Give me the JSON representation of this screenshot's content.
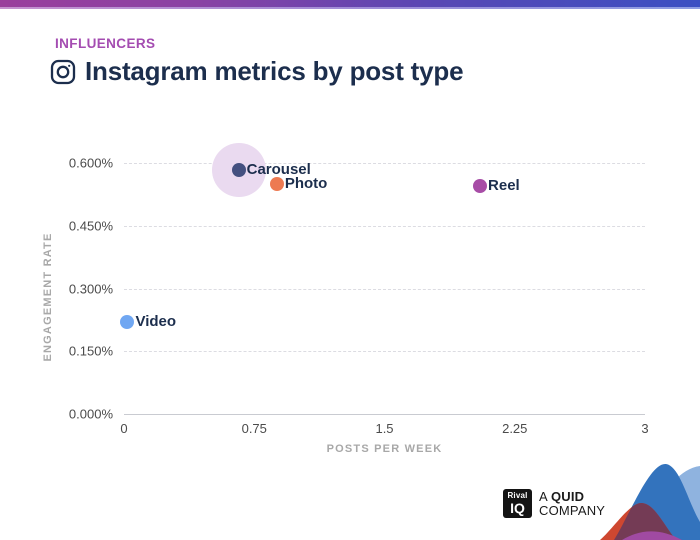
{
  "header": {
    "eyebrow": "INFLUENCERS",
    "title": "Instagram metrics by post type",
    "eyebrow_color": "#A44CB1",
    "title_color": "#1C2E4D",
    "topbar_gradient": [
      "#9A3F9C",
      "#3B50C3"
    ]
  },
  "chart_data": {
    "type": "scatter",
    "title": "Instagram metrics by post type",
    "xlabel": "POSTS PER WEEK",
    "ylabel": "ENGAGEMENT RATE",
    "xlim": [
      0,
      3
    ],
    "ylim": [
      0,
      0.6
    ],
    "grid": "horizontal, dashed, baseline solid",
    "legend": "none (labels next to points)",
    "x_ticks": [
      {
        "v": 0,
        "label": "0"
      },
      {
        "v": 0.75,
        "label": "0.75"
      },
      {
        "v": 1.5,
        "label": "1.5"
      },
      {
        "v": 2.25,
        "label": "2.25"
      },
      {
        "v": 3,
        "label": "3"
      }
    ],
    "y_ticks": [
      {
        "v": 0.6,
        "label": "0.600%"
      },
      {
        "v": 0.45,
        "label": "0.450%"
      },
      {
        "v": 0.3,
        "label": "0.300%"
      },
      {
        "v": 0.15,
        "label": "0.150%"
      },
      {
        "v": 0,
        "label": "0.000%"
      }
    ],
    "points": [
      {
        "label": "Carousel",
        "x": 0.66,
        "y": 0.583,
        "color": "#445080",
        "halo": true,
        "halo_color": "#EADAF0"
      },
      {
        "label": "Photo",
        "x": 0.88,
        "y": 0.55,
        "color": "#ED7A52",
        "halo": false
      },
      {
        "label": "Reel",
        "x": 2.05,
        "y": 0.545,
        "color": "#A74CA6",
        "halo": false
      },
      {
        "label": "Video",
        "x": 0.02,
        "y": 0.22,
        "color": "#70A7F2",
        "halo": false
      }
    ]
  },
  "footer": {
    "logo_small": "Rival",
    "logo_big": "IQ",
    "company_a": "A ",
    "company_quid": "QUID",
    "company_line2": "COMPANY"
  }
}
